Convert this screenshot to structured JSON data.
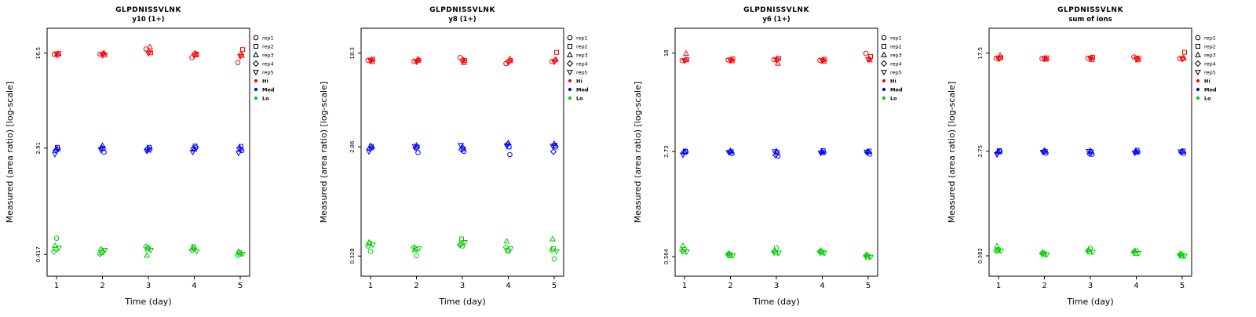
{
  "legend": {
    "reps": [
      {
        "label": "rep1",
        "symbol": "circle"
      },
      {
        "label": "rep2",
        "symbol": "square"
      },
      {
        "label": "rep3",
        "symbol": "triangle"
      },
      {
        "label": "rep4",
        "symbol": "diamond"
      },
      {
        "label": "rep5",
        "symbol": "triangle-down"
      }
    ],
    "levels": [
      {
        "label": "Hi",
        "color": "#FF0000"
      },
      {
        "label": "Med",
        "color": "#0000FF"
      },
      {
        "label": "Lo",
        "color": "#00CD00"
      }
    ]
  },
  "chart_data": [
    {
      "type": "scatter",
      "title": "GLPDNISSVLNK",
      "subtitle": "y10 (1+)",
      "xlabel": "Time (day)",
      "ylabel": "Measured (area ratio) [log-scale]",
      "x": [
        1,
        2,
        3,
        4,
        5
      ],
      "log_scale": true,
      "yticks": [
        16.5,
        2.91,
        0.417
      ],
      "ylim": [
        0.28,
        26
      ],
      "groups": [
        {
          "name": "Hi",
          "color": "#FF0000",
          "values": [
            [
              16.1,
              16.4,
              16.2,
              15.9,
              16.3
            ],
            [
              16.2,
              16.0,
              16.5,
              16.3,
              15.8
            ],
            [
              17.8,
              16.6,
              18.5,
              16.9,
              16.4
            ],
            [
              15.2,
              16.2,
              16.0,
              16.4,
              15.7
            ],
            [
              13.9,
              17.6,
              15.8,
              16.1,
              15.5
            ]
          ]
        },
        {
          "name": "Med",
          "color": "#0000FF",
          "values": [
            [
              2.85,
              2.95,
              2.88,
              2.78,
              2.6
            ],
            [
              2.7,
              2.88,
              3.05,
              2.92,
              2.81
            ],
            [
              2.86,
              2.95,
              2.8,
              2.88,
              2.75
            ],
            [
              2.95,
              3.02,
              2.85,
              2.9,
              2.7
            ],
            [
              2.78,
              3.0,
              2.88,
              2.92,
              2.65
            ]
          ]
        },
        {
          "name": "Lo",
          "color": "#00CD00",
          "values": [
            [
              0.56,
              0.46,
              0.49,
              0.44,
              0.47
            ],
            [
              0.44,
              0.43,
              0.46,
              0.42,
              0.45
            ],
            [
              0.47,
              0.46,
              0.41,
              0.48,
              0.45
            ],
            [
              0.46,
              0.48,
              0.47,
              0.45,
              0.44
            ],
            [
              0.42,
              0.43,
              0.44,
              0.41,
              0.42
            ]
          ]
        }
      ]
    },
    {
      "type": "scatter",
      "title": "GLPDNISSVLNK",
      "subtitle": "y8 (1+)",
      "xlabel": "Time (day)",
      "ylabel": "Measured (area ratio) [log-scale]",
      "x": [
        1,
        2,
        3,
        4,
        5
      ],
      "log_scale": true,
      "yticks": [
        18.3,
        2.86,
        0.328
      ],
      "ylim": [
        0.22,
        30
      ],
      "groups": [
        {
          "name": "Hi",
          "color": "#FF0000",
          "values": [
            [
              15.9,
              16.2,
              15.5,
              16.0,
              15.8
            ],
            [
              15.6,
              15.9,
              16.3,
              15.7,
              15.4
            ],
            [
              16.8,
              15.8,
              15.2,
              16.0,
              15.5
            ],
            [
              14.9,
              15.8,
              16.4,
              15.6,
              15.2
            ],
            [
              15.5,
              18.6,
              16.2,
              15.8,
              15.4
            ]
          ]
        },
        {
          "name": "Med",
          "color": "#0000FF",
          "values": [
            [
              2.8,
              2.88,
              2.92,
              2.75,
              2.6
            ],
            [
              2.55,
              2.85,
              2.95,
              2.8,
              2.88
            ],
            [
              2.62,
              2.75,
              2.88,
              2.7,
              2.95
            ],
            [
              2.45,
              2.85,
              3.1,
              3.0,
              2.92
            ],
            [
              2.85,
              2.95,
              3.05,
              2.6,
              2.9
            ]
          ]
        },
        {
          "name": "Lo",
          "color": "#00CD00",
          "values": [
            [
              0.36,
              0.42,
              0.43,
              0.4,
              0.41
            ],
            [
              0.33,
              0.38,
              0.37,
              0.39,
              0.38
            ],
            [
              0.4,
              0.46,
              0.42,
              0.41,
              0.43
            ],
            [
              0.36,
              0.37,
              0.44,
              0.39,
              0.38
            ],
            [
              0.31,
              0.38,
              0.46,
              0.37,
              0.36
            ]
          ]
        }
      ]
    },
    {
      "type": "scatter",
      "title": "GLPDNISSVLNK",
      "subtitle": "y6 (1+)",
      "xlabel": "Time (day)",
      "ylabel": "Measured (area ratio) [log-scale]",
      "x": [
        1,
        2,
        3,
        4,
        5
      ],
      "log_scale": true,
      "yticks": [
        18,
        2.73,
        0.364
      ],
      "ylim": [
        0.25,
        29
      ],
      "groups": [
        {
          "name": "Hi",
          "color": "#FF0000",
          "values": [
            [
              15.6,
              15.9,
              17.9,
              15.8,
              15.5
            ],
            [
              15.8,
              16.1,
              15.5,
              15.9,
              15.6
            ],
            [
              15.9,
              16.3,
              14.8,
              16.0,
              15.7
            ],
            [
              15.7,
              16.0,
              15.4,
              15.8,
              15.6
            ],
            [
              17.9,
              16.9,
              15.8,
              16.1,
              15.9
            ]
          ]
        },
        {
          "name": "Med",
          "color": "#0000FF",
          "values": [
            [
              2.7,
              2.75,
              2.72,
              2.68,
              2.55
            ],
            [
              2.62,
              2.72,
              2.78,
              2.7,
              2.68
            ],
            [
              2.5,
              2.68,
              2.75,
              2.55,
              2.72
            ],
            [
              2.68,
              2.78,
              2.72,
              2.7,
              2.65
            ],
            [
              2.6,
              2.75,
              2.72,
              2.68,
              2.7
            ]
          ]
        },
        {
          "name": "Lo",
          "color": "#00CD00",
          "values": [
            [
              0.42,
              0.4,
              0.45,
              0.41,
              0.4
            ],
            [
              0.38,
              0.37,
              0.39,
              0.38,
              0.37
            ],
            [
              0.43,
              0.39,
              0.41,
              0.4,
              0.39
            ],
            [
              0.4,
              0.39,
              0.41,
              0.4,
              0.39
            ],
            [
              0.37,
              0.36,
              0.38,
              0.37,
              0.36
            ]
          ]
        }
      ]
    },
    {
      "type": "scatter",
      "title": "GLPDNISSVLNK",
      "subtitle": "sum of ions",
      "xlabel": "Time (day)",
      "ylabel": "Measured (area ratio) [log-scale]",
      "x": [
        1,
        2,
        3,
        4,
        5
      ],
      "log_scale": true,
      "yticks": [
        17.5,
        2.75,
        0.382
      ],
      "ylim": [
        0.26,
        28
      ],
      "groups": [
        {
          "name": "Hi",
          "color": "#FF0000",
          "values": [
            [
              15.9,
              16.1,
              16.8,
              15.8,
              15.7
            ],
            [
              15.8,
              16.0,
              15.6,
              15.9,
              15.7
            ],
            [
              15.9,
              16.2,
              15.5,
              16.0,
              15.8
            ],
            [
              16.3,
              15.9,
              15.4,
              15.8,
              15.7
            ],
            [
              15.8,
              17.8,
              16.0,
              15.9,
              15.6
            ]
          ]
        },
        {
          "name": "Med",
          "color": "#0000FF",
          "values": [
            [
              2.72,
              2.78,
              2.74,
              2.68,
              2.58
            ],
            [
              2.65,
              2.74,
              2.8,
              2.72,
              2.7
            ],
            [
              2.6,
              2.72,
              2.78,
              2.62,
              2.74
            ],
            [
              2.7,
              2.8,
              2.74,
              2.72,
              2.66
            ],
            [
              2.64,
              2.76,
              2.74,
              2.7,
              2.72
            ]
          ]
        },
        {
          "name": "Lo",
          "color": "#00CD00",
          "values": [
            [
              0.43,
              0.42,
              0.46,
              0.42,
              0.42
            ],
            [
              0.4,
              0.39,
              0.41,
              0.4,
              0.39
            ],
            [
              0.44,
              0.41,
              0.43,
              0.42,
              0.41
            ],
            [
              0.42,
              0.4,
              0.42,
              0.41,
              0.4
            ],
            [
              0.39,
              0.38,
              0.4,
              0.39,
              0.38
            ]
          ]
        }
      ]
    }
  ]
}
